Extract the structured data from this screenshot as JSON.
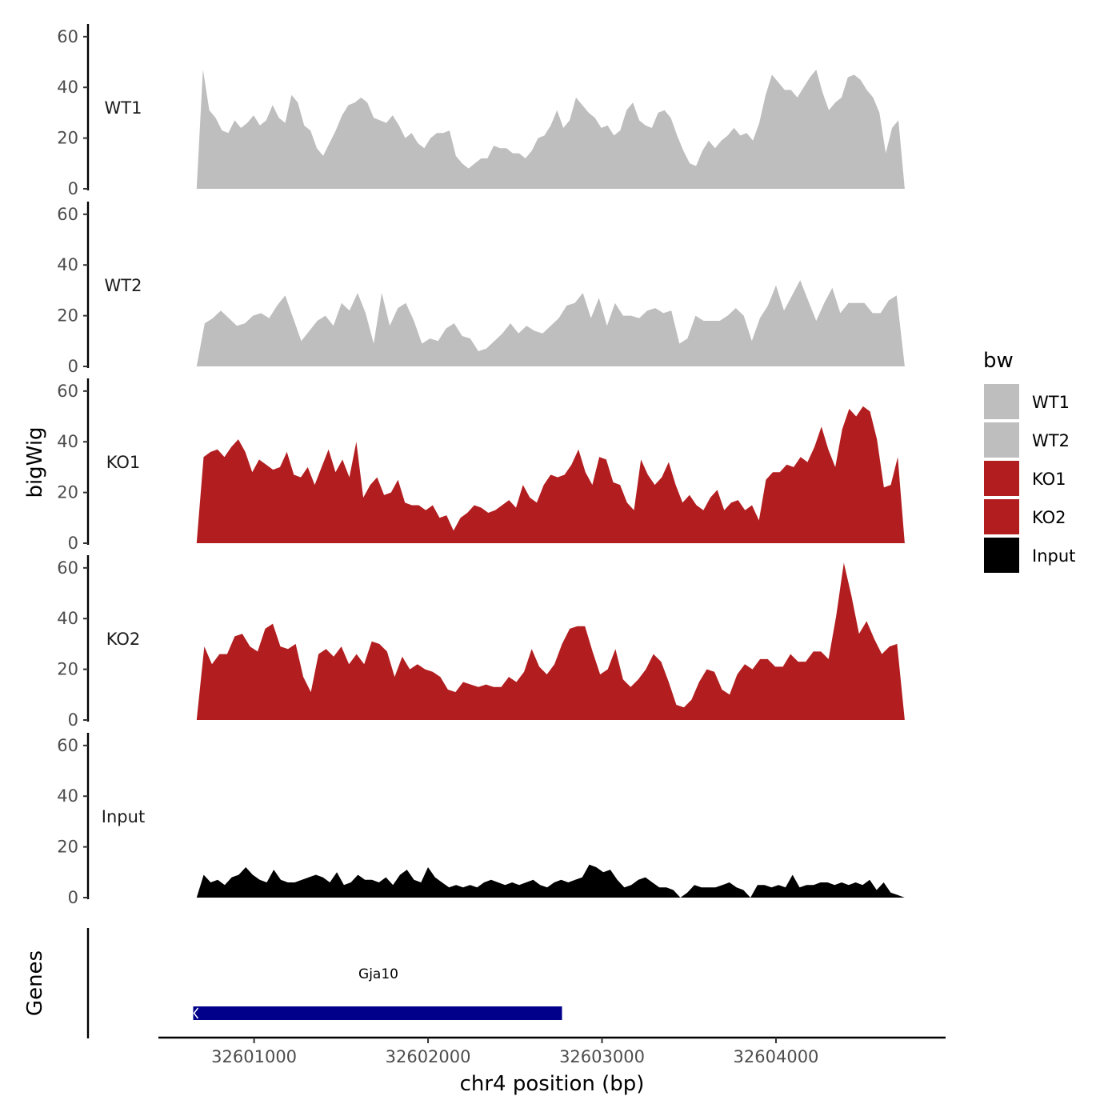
{
  "chart_data": {
    "type": "area",
    "ylabel": "bigWig",
    "xlabel": "chr4 position (bp)",
    "ylim": [
      0,
      65
    ],
    "yticks": [
      0,
      20,
      40,
      60
    ],
    "xlim": [
      32600450,
      32604975
    ],
    "xticks": [
      32601000,
      32602000,
      32603000,
      32604000
    ],
    "xtick_labels": [
      "32601000",
      "32602000",
      "32603000",
      "32604000"
    ],
    "data_x_range": [
      32600670,
      32604740
    ],
    "legend": {
      "title": "bw",
      "position": "right",
      "entries": [
        {
          "label": "WT1",
          "color": "#bebebe"
        },
        {
          "label": "WT2",
          "color": "#bebebe"
        },
        {
          "label": "KO1",
          "color": "#b21e20"
        },
        {
          "label": "KO2",
          "color": "#b21e20"
        },
        {
          "label": "Input",
          "color": "#000000"
        }
      ]
    },
    "tracks": [
      {
        "name": "WT1",
        "color": "#bebebe",
        "values": [
          0,
          47,
          31,
          28,
          23,
          22,
          27,
          24,
          26,
          29,
          25,
          27,
          33,
          28,
          26,
          37,
          34,
          25,
          23,
          16,
          13,
          18,
          23,
          29,
          33,
          34,
          36,
          34,
          28,
          27,
          26,
          29,
          25,
          20,
          22,
          18,
          16,
          20,
          22,
          22,
          23,
          13,
          10,
          8,
          10,
          12,
          12,
          17,
          16,
          16,
          14,
          14,
          12,
          15,
          20,
          21,
          25,
          31,
          24,
          27,
          36,
          33,
          30,
          28,
          24,
          25,
          21,
          23,
          31,
          34,
          27,
          25,
          24,
          30,
          31,
          28,
          21,
          15,
          10,
          9,
          15,
          19,
          16,
          19,
          21,
          24,
          21,
          22,
          19,
          26,
          37,
          45,
          42,
          39,
          39,
          36,
          40,
          44,
          47,
          38,
          31,
          34,
          36,
          44,
          45,
          43,
          39,
          36,
          30,
          14,
          24,
          27,
          0
        ]
      },
      {
        "name": "WT2",
        "color": "#bebebe",
        "values": [
          0,
          17,
          19,
          22,
          19,
          16,
          17,
          20,
          21,
          19,
          24,
          28,
          19,
          10,
          14,
          18,
          20,
          16,
          25,
          22,
          29,
          21,
          9,
          29,
          16,
          23,
          25,
          18,
          9,
          11,
          10,
          15,
          17,
          12,
          11,
          6,
          7,
          10,
          13,
          17,
          13,
          16,
          14,
          13,
          16,
          19,
          24,
          25,
          29,
          19,
          27,
          16,
          25,
          20,
          20,
          19,
          22,
          23,
          21,
          22,
          9,
          11,
          20,
          18,
          18,
          18,
          20,
          23,
          20,
          10,
          19,
          24,
          32,
          22,
          28,
          34,
          26,
          18,
          25,
          31,
          21,
          25,
          25,
          25,
          21,
          21,
          26,
          28,
          0
        ]
      },
      {
        "name": "KO1",
        "color": "#b21e20",
        "values": [
          0,
          34,
          36,
          37,
          34,
          38,
          41,
          36,
          28,
          33,
          31,
          29,
          30,
          36,
          27,
          26,
          30,
          23,
          30,
          37,
          28,
          33,
          26,
          40,
          18,
          23,
          26,
          19,
          20,
          25,
          16,
          15,
          15,
          13,
          15,
          10,
          11,
          5,
          10,
          12,
          15,
          14,
          12,
          13,
          15,
          17,
          14,
          23,
          18,
          16,
          23,
          27,
          26,
          27,
          31,
          37,
          28,
          23,
          34,
          33,
          24,
          23,
          16,
          13,
          33,
          27,
          23,
          26,
          32,
          23,
          16,
          19,
          15,
          13,
          18,
          21,
          13,
          16,
          17,
          13,
          15,
          9,
          25,
          28,
          28,
          31,
          30,
          34,
          32,
          38,
          46,
          37,
          30,
          45,
          53,
          50,
          54,
          52,
          41,
          22,
          23,
          34,
          0
        ]
      },
      {
        "name": "KO2",
        "color": "#b21e20",
        "values": [
          0,
          29,
          22,
          26,
          26,
          33,
          34,
          29,
          27,
          36,
          38,
          29,
          28,
          30,
          17,
          11,
          26,
          28,
          25,
          29,
          22,
          26,
          22,
          31,
          30,
          27,
          17,
          25,
          20,
          22,
          20,
          19,
          17,
          12,
          11,
          15,
          14,
          13,
          14,
          13,
          13,
          17,
          15,
          19,
          28,
          21,
          18,
          22,
          30,
          36,
          37,
          37,
          27,
          18,
          20,
          28,
          16,
          13,
          16,
          20,
          26,
          23,
          15,
          6,
          5,
          8,
          15,
          20,
          19,
          12,
          10,
          18,
          22,
          20,
          24,
          24,
          21,
          21,
          26,
          23,
          23,
          27,
          27,
          24,
          41,
          62,
          49,
          34,
          39,
          32,
          26,
          29,
          30,
          0
        ]
      },
      {
        "name": "Input",
        "color": "#000000",
        "values": [
          0,
          9,
          6,
          7,
          5,
          8,
          9,
          12,
          9,
          7,
          6,
          11,
          7,
          6,
          6,
          7,
          8,
          9,
          8,
          6,
          10,
          5,
          6,
          9,
          7,
          7,
          6,
          8,
          5,
          9,
          11,
          7,
          6,
          12,
          8,
          6,
          4,
          5,
          4,
          5,
          4,
          6,
          7,
          6,
          5,
          6,
          5,
          6,
          7,
          5,
          4,
          6,
          7,
          6,
          7,
          8,
          13,
          12,
          10,
          11,
          7,
          4,
          5,
          7,
          8,
          6,
          4,
          4,
          3,
          0,
          2,
          5,
          4,
          4,
          4,
          5,
          6,
          4,
          3,
          0,
          5,
          5,
          4,
          5,
          4,
          9,
          4,
          5,
          5,
          6,
          6,
          5,
          6,
          5,
          6,
          5,
          7,
          3,
          6,
          2,
          1,
          0
        ]
      }
    ],
    "genes_track": {
      "label": "Genes",
      "genes": [
        {
          "name": "Gja10",
          "start": 32600650,
          "end": 32602770,
          "strand": "-",
          "color": "#00008b"
        }
      ]
    }
  }
}
